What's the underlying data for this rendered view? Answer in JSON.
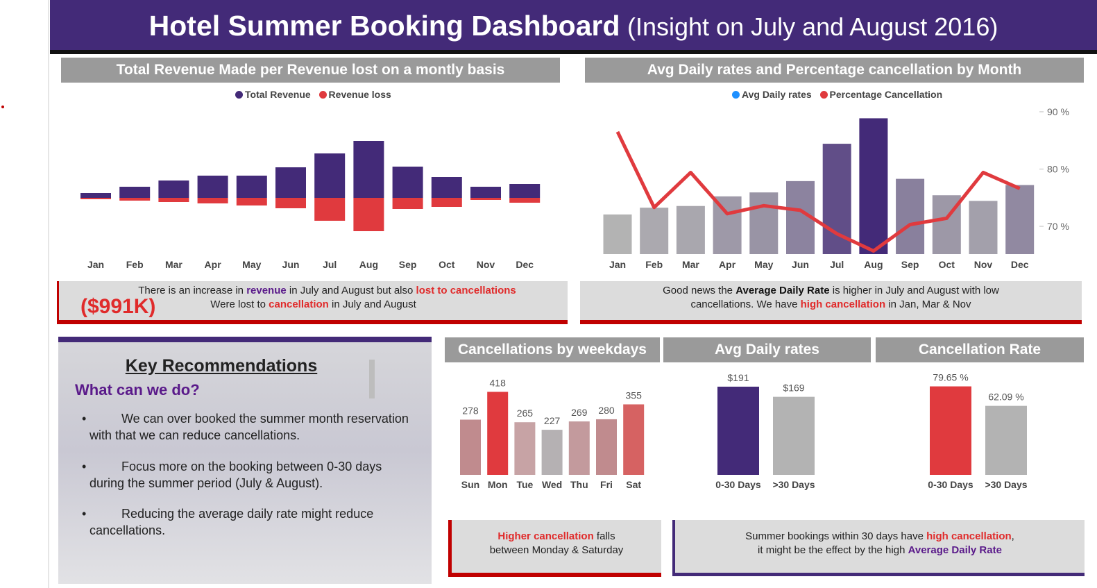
{
  "header": {
    "title": "Hotel Summer Booking Dashboard",
    "subtitle": "(Insight on July and August 2016)"
  },
  "colors": {
    "purple": "#432a78",
    "red": "#e03a3e",
    "blue": "#1e90ff",
    "gray": "#9a9a9a",
    "light_gray": "#b3b3b3"
  },
  "panels": {
    "revenue_title": "Total Revenue Made per Revenue lost on a montly basis",
    "adr_title": "Avg Daily rates and Percentage cancellation by Month",
    "weekday_title": "Cancellations by weekdays",
    "adr_small_title": "Avg Daily rates",
    "cancel_rate_title": "Cancellation Rate"
  },
  "legends": {
    "revenue": [
      "Total Revenue",
      "Revenue loss"
    ],
    "adr": [
      "Avg Daily rates",
      "Percentage Cancellation"
    ]
  },
  "notes": {
    "revenue": {
      "l1a": "There is an increase in ",
      "l1b": "revenue",
      "l1c": " in July and August but also ",
      "l1d": "lost to cancellations",
      "amount": "($991K)",
      "l2a": "Were lost to ",
      "l2b": "cancellation",
      "l2c": " in July and August"
    },
    "adr": {
      "l1a": "Good news the ",
      "l1b": "Average Daily Rate",
      "l1c": " is higher in July and August with low",
      "l2a": "cancellations. We have ",
      "l2b": "high cancellation",
      "l2c": " in Jan, Mar & Nov"
    },
    "weekday": {
      "l1a": "Higher cancellation",
      "l1b": " falls",
      "l2": "between Monday & Saturday"
    },
    "summer": {
      "l1a": "Summer bookings within 30 days have ",
      "l1b": "high cancellation",
      "l1c": ",",
      "l2a": "it might be the effect by the high ",
      "l2b": "Average Daily Rate"
    }
  },
  "recommendations": {
    "heading": "Key Recommendations",
    "subheading": "What can we do?",
    "bullet": "•",
    "items": [
      "We can over booked the summer month reservation with that we can reduce cancellations.",
      "Focus more on the booking between 0-30 days during the summer period (July & August).",
      "Reducing the average daily rate might reduce cancellations."
    ]
  },
  "chart_data": [
    {
      "type": "bar",
      "name": "revenue",
      "categories": [
        "Jan",
        "Feb",
        "Mar",
        "Apr",
        "May",
        "Jun",
        "Jul",
        "Aug",
        "Sep",
        "Oct",
        "Nov",
        "Dec"
      ],
      "series": [
        {
          "name": "Total Revenue",
          "values": [
            7,
            16,
            25,
            32,
            32,
            44,
            64,
            82,
            45,
            30,
            16,
            20
          ]
        },
        {
          "name": "Revenue loss",
          "values": [
            -2,
            -4,
            -6,
            -8,
            -11,
            -15,
            -33,
            -48,
            -16,
            -13,
            -3,
            -7
          ]
        }
      ],
      "grid": false,
      "legend": "top-center"
    },
    {
      "type": "bar+line",
      "name": "adr_cancellation",
      "categories": [
        "Jan",
        "Feb",
        "Mar",
        "Apr",
        "May",
        "Jun",
        "Jul",
        "Aug",
        "Sep",
        "Oct",
        "Nov",
        "Dec"
      ],
      "series": [
        {
          "name": "Avg Daily rates",
          "type": "bar",
          "values": [
            70,
            82,
            85,
            102,
            109,
            129,
            195,
            240,
            133,
            104,
            94,
            122
          ]
        },
        {
          "name": "Percentage Cancellation",
          "type": "line",
          "values": [
            86.5,
            73.3,
            79.4,
            72.2,
            73.6,
            72.8,
            68.7,
            65.7,
            70.3,
            71.4,
            79.4,
            76.6
          ]
        }
      ],
      "y_right_ticks": [
        "90 %",
        "80 %",
        "70 %"
      ],
      "y_right_values": [
        90,
        80,
        70
      ],
      "grid": false,
      "legend": "top-center"
    },
    {
      "type": "bar",
      "name": "weekday_cancellations",
      "categories": [
        "Sun",
        "Mon",
        "Tue",
        "Wed",
        "Thu",
        "Fri",
        "Sat"
      ],
      "values": [
        278,
        418,
        265,
        227,
        269,
        280,
        355
      ],
      "labels": [
        "278",
        "418",
        "265",
        "227",
        "269",
        "280",
        "355"
      ],
      "colors": [
        "#c08b8e",
        "#e03a3e",
        "#c7a3a5",
        "#b5b1b3",
        "#c39a9d",
        "#c08b8e",
        "#d66262"
      ]
    },
    {
      "type": "bar",
      "name": "adr_lead_time",
      "categories": [
        "0-30 Days",
        ">30 Days"
      ],
      "values": [
        191,
        169
      ],
      "labels": [
        "$191",
        "$169"
      ],
      "colors": [
        "#432a78",
        "#b3b3b3"
      ]
    },
    {
      "type": "bar",
      "name": "cancellation_rate",
      "categories": [
        "0-30 Days",
        ">30 Days"
      ],
      "values": [
        79.65,
        62.09
      ],
      "labels": [
        "79.65 %",
        "62.09 %"
      ],
      "colors": [
        "#e03a3e",
        "#b3b3b3"
      ]
    }
  ]
}
